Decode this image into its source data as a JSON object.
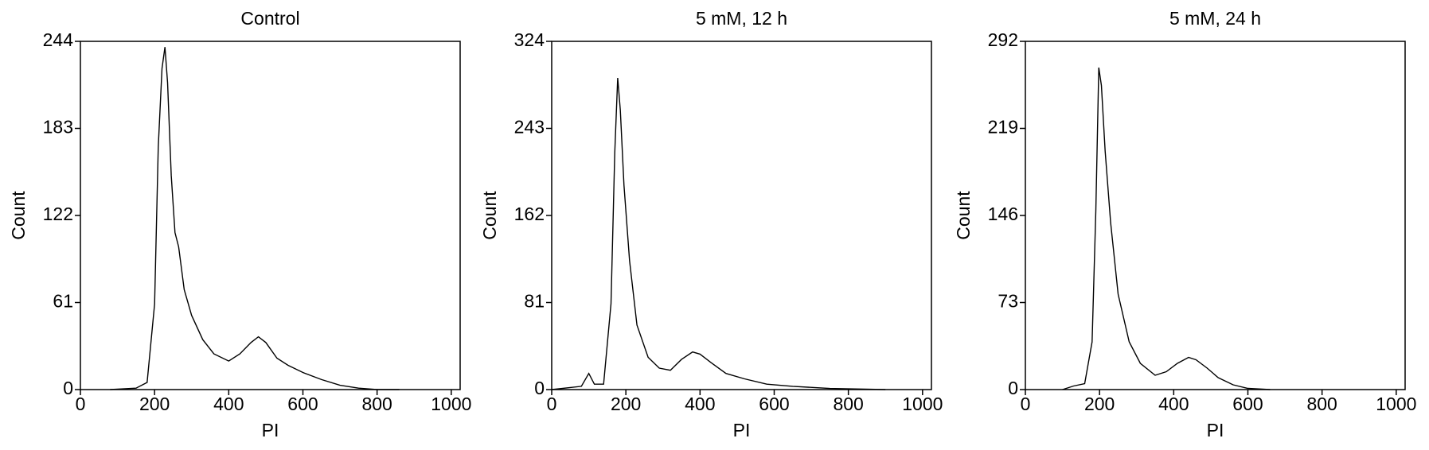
{
  "chart_data": [
    {
      "type": "line",
      "title": "Control",
      "x_label": "PI",
      "y_label": "Count",
      "color": "#000000",
      "x": [
        80,
        150,
        180,
        200,
        210,
        220,
        228,
        235,
        245,
        255,
        265,
        280,
        300,
        330,
        360,
        400,
        430,
        460,
        480,
        500,
        530,
        560,
        600,
        650,
        700,
        750,
        800,
        860
      ],
      "values": [
        0,
        1,
        5,
        60,
        170,
        225,
        240,
        215,
        150,
        110,
        100,
        70,
        52,
        35,
        25,
        20,
        25,
        33,
        37,
        33,
        22,
        17,
        12,
        7,
        3,
        1,
        0,
        0
      ],
      "xlim": [
        0,
        1024
      ],
      "xticks": [
        0,
        200,
        400,
        600,
        800,
        1000
      ],
      "ylim": [
        0,
        244
      ],
      "yticks": [
        0,
        61,
        122,
        183,
        244
      ]
    },
    {
      "type": "line",
      "title": "5 mM, 12 h",
      "x_label": "PI",
      "y_label": "Count",
      "color": "#000000",
      "x": [
        0,
        80,
        100,
        115,
        140,
        160,
        170,
        178,
        185,
        195,
        210,
        230,
        260,
        290,
        320,
        350,
        380,
        400,
        430,
        470,
        520,
        580,
        650,
        750,
        900
      ],
      "values": [
        0,
        3,
        15,
        5,
        5,
        80,
        220,
        290,
        260,
        190,
        120,
        60,
        30,
        20,
        18,
        28,
        35,
        33,
        25,
        15,
        10,
        5,
        3,
        1,
        0
      ],
      "xlim": [
        0,
        1024
      ],
      "xticks": [
        0,
        200,
        400,
        600,
        800,
        1000
      ],
      "ylim": [
        0,
        324
      ],
      "yticks": [
        0,
        81,
        162,
        243,
        324
      ]
    },
    {
      "type": "line",
      "title": "5 mM, 24 h",
      "x_label": "PI",
      "y_label": "Count",
      "color": "#000000",
      "x": [
        100,
        130,
        160,
        180,
        190,
        198,
        205,
        215,
        230,
        250,
        280,
        310,
        350,
        380,
        410,
        440,
        460,
        490,
        520,
        560,
        600,
        660
      ],
      "values": [
        0,
        3,
        5,
        40,
        150,
        270,
        255,
        200,
        140,
        80,
        40,
        22,
        12,
        15,
        22,
        27,
        25,
        18,
        10,
        4,
        1,
        0
      ],
      "xlim": [
        0,
        1024
      ],
      "xticks": [
        0,
        200,
        400,
        600,
        800,
        1000
      ],
      "ylim": [
        0,
        292
      ],
      "yticks": [
        0,
        73,
        146,
        219,
        292
      ]
    }
  ]
}
